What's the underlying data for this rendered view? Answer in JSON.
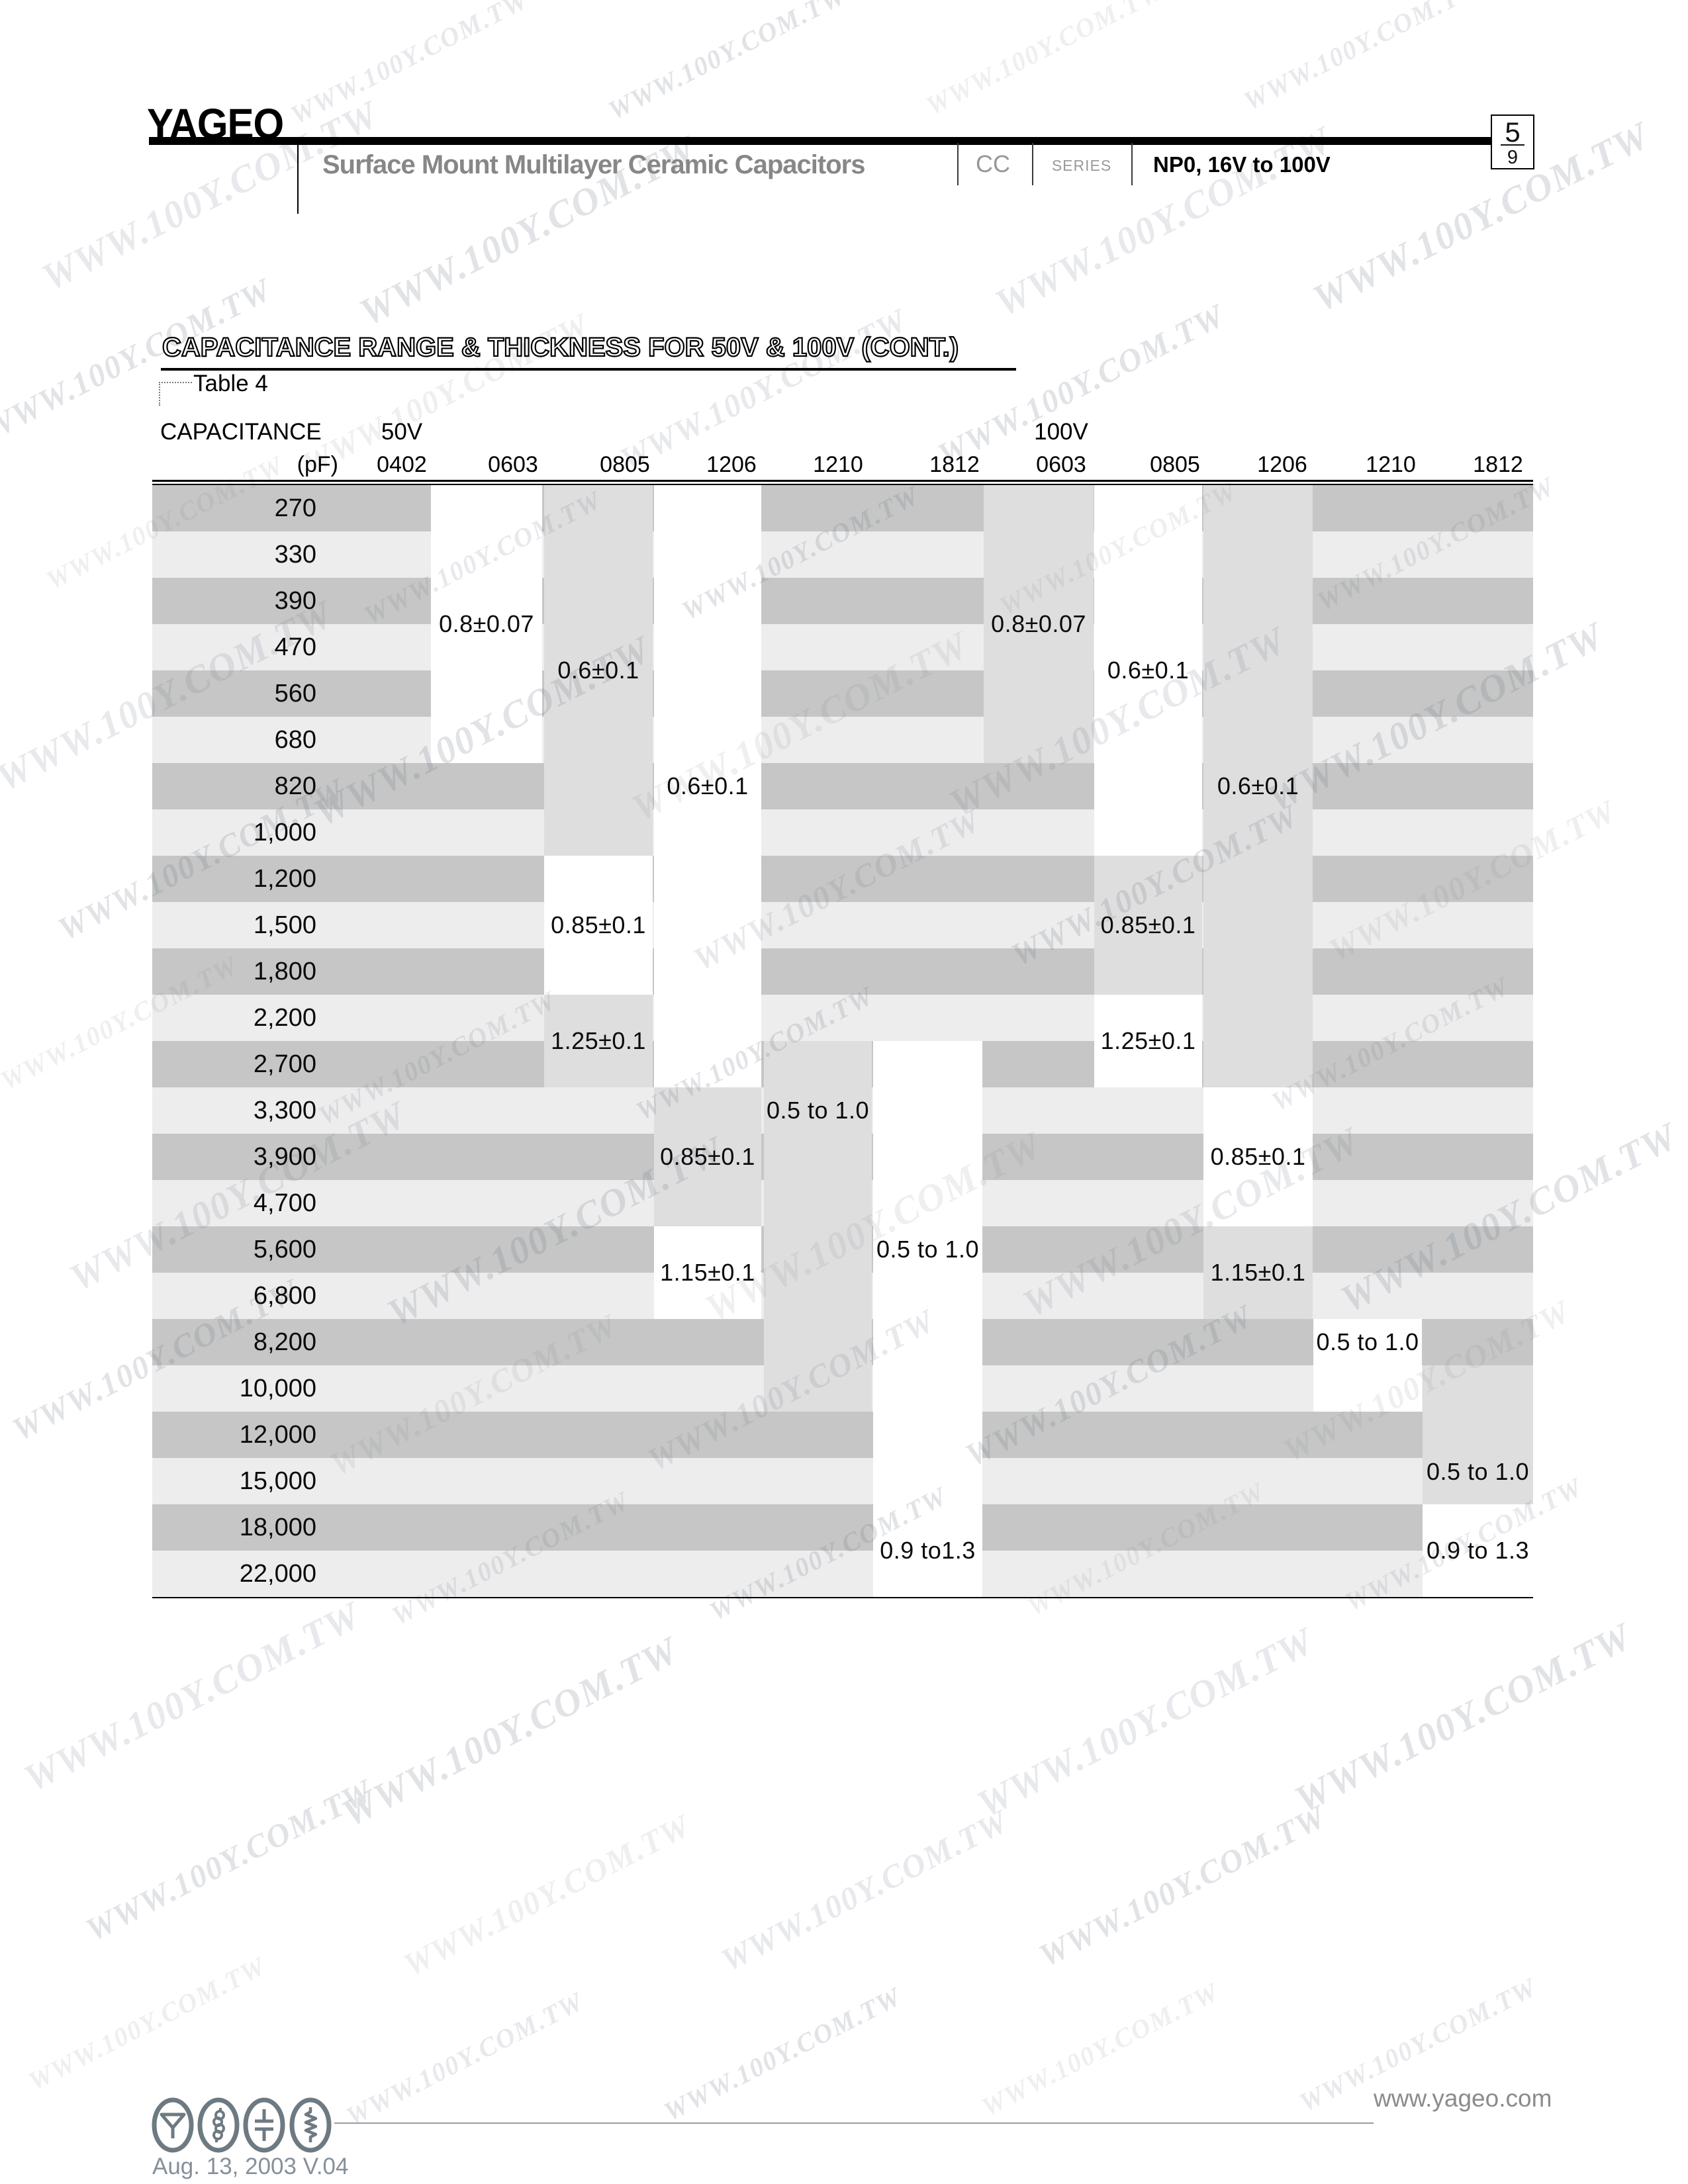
{
  "header": {
    "logo": "YAGEO",
    "product_title": "Surface Mount Multilayer Ceramic Capacitors",
    "series_code": "CC",
    "series_word": "SERIES",
    "series_spec": "NP0, 16V to 100V",
    "page_num": "5",
    "page_total": "9"
  },
  "section": {
    "title": "CAPACITANCE RANGE & THICKNESS FOR 50V & 100V (CONT.)",
    "caption": "Table 4"
  },
  "table": {
    "corner_label": "CAPACITANCE",
    "unit_label": "(pF)",
    "groups": [
      {
        "label": "50V",
        "sizes": [
          "0402",
          "0603",
          "0805",
          "1206",
          "1210",
          "1812"
        ]
      },
      {
        "label": "100V",
        "sizes": [
          "0603",
          "0805",
          "1206",
          "1210",
          "1812"
        ]
      }
    ],
    "rows": [
      "270",
      "330",
      "390",
      "470",
      "560",
      "680",
      "820",
      "1,000",
      "1,200",
      "1,500",
      "1,800",
      "2,200",
      "2,700",
      "3,300",
      "3,900",
      "4,700",
      "5,600",
      "6,800",
      "8,200",
      "10,000",
      "12,000",
      "15,000",
      "18,000",
      "22,000"
    ],
    "bands": [
      {
        "voltage": "50V",
        "size": "0603",
        "shade": "white",
        "from": "270",
        "to": "680",
        "labels": [
          {
            "text": "0.8±0.07",
            "row": 2.5
          }
        ]
      },
      {
        "voltage": "50V",
        "size": "0805",
        "shade": "gray",
        "from": "270",
        "to": "1,000",
        "labels": [
          {
            "text": "0.6±0.1",
            "row": 3.5
          }
        ]
      },
      {
        "voltage": "50V",
        "size": "0805",
        "shade": "white",
        "from": "1,200",
        "to": "1,800",
        "labels": [
          {
            "text": "0.85±0.1",
            "row": 9
          }
        ]
      },
      {
        "voltage": "50V",
        "size": "0805",
        "shade": "gray",
        "from": "2,200",
        "to": "2,700",
        "labels": [
          {
            "text": "1.25±0.1",
            "row": 11.5
          }
        ]
      },
      {
        "voltage": "50V",
        "size": "1206",
        "shade": "white",
        "from": "270",
        "to": "2,700",
        "labels": [
          {
            "text": "0.6±0.1",
            "row": 6
          }
        ]
      },
      {
        "voltage": "50V",
        "size": "1206",
        "shade": "gray",
        "from": "3,300",
        "to": "4,700",
        "labels": [
          {
            "text": "0.85±0.1",
            "row": 14
          }
        ]
      },
      {
        "voltage": "50V",
        "size": "1206",
        "shade": "white",
        "from": "5,600",
        "to": "6,800",
        "labels": [
          {
            "text": "1.15±0.1",
            "row": 16.5
          }
        ]
      },
      {
        "voltage": "50V",
        "size": "1210",
        "shade": "gray",
        "from": "2,700",
        "to": "10,000",
        "labels": [
          {
            "text": "0.5 to 1.0",
            "row": 13
          }
        ]
      },
      {
        "voltage": "50V",
        "size": "1812",
        "shade": "white",
        "from": "2,700",
        "to": "22,000",
        "labels": [
          {
            "text": "0.5 to 1.0",
            "row": 16
          },
          {
            "text": "0.9 to1.3",
            "row": 22.5
          }
        ]
      },
      {
        "voltage": "100V",
        "size": "0603",
        "shade": "gray",
        "from": "270",
        "to": "680",
        "labels": [
          {
            "text": "0.8±0.07",
            "row": 2.5
          }
        ]
      },
      {
        "voltage": "100V",
        "size": "0805",
        "shade": "white",
        "from": "270",
        "to": "1,000",
        "labels": [
          {
            "text": "0.6±0.1",
            "row": 3.5
          }
        ]
      },
      {
        "voltage": "100V",
        "size": "0805",
        "shade": "gray",
        "from": "1,200",
        "to": "1,800",
        "labels": [
          {
            "text": "0.85±0.1",
            "row": 9
          }
        ]
      },
      {
        "voltage": "100V",
        "size": "0805",
        "shade": "white",
        "from": "2,200",
        "to": "2,700",
        "labels": [
          {
            "text": "1.25±0.1",
            "row": 11.5
          }
        ]
      },
      {
        "voltage": "100V",
        "size": "1206",
        "shade": "gray",
        "from": "270",
        "to": "2,700",
        "labels": [
          {
            "text": "0.6±0.1",
            "row": 6
          }
        ]
      },
      {
        "voltage": "100V",
        "size": "1206",
        "shade": "white",
        "from": "3,300",
        "to": "4,700",
        "labels": [
          {
            "text": "0.85±0.1",
            "row": 14
          }
        ]
      },
      {
        "voltage": "100V",
        "size": "1206",
        "shade": "gray",
        "from": "5,600",
        "to": "6,800",
        "labels": [
          {
            "text": "1.15±0.1",
            "row": 16.5
          }
        ]
      },
      {
        "voltage": "100V",
        "size": "1210",
        "shade": "white",
        "from": "8,200",
        "to": "10,000",
        "labels": [
          {
            "text": "0.5 to 1.0",
            "row": 18
          }
        ]
      },
      {
        "voltage": "100V",
        "size": "1812",
        "shade": "gray",
        "from": "10,000",
        "to": "15,000",
        "labels": [
          {
            "text": "0.5 to 1.0",
            "row": 20.8
          }
        ]
      },
      {
        "voltage": "100V",
        "size": "1812",
        "shade": "white",
        "from": "18,000",
        "to": "22,000",
        "labels": [
          {
            "text": "0.9 to 1.3",
            "row": 22.5
          }
        ]
      }
    ]
  },
  "footer": {
    "date_version": "Aug. 13, 2003 V.04",
    "website": "www.yageo.com",
    "icons": [
      "antenna-icon",
      "inductor-icon",
      "capacitor-icon",
      "resistor-icon"
    ]
  },
  "watermark": {
    "text": "WWW.100Y.COM.TW"
  },
  "colors": {
    "stripe_dark": "#c5c6c5",
    "stripe_light": "#ededed",
    "band_gray": "#dedede",
    "band_white": "#ffffff",
    "accent_gray": "#8a8a8a"
  }
}
